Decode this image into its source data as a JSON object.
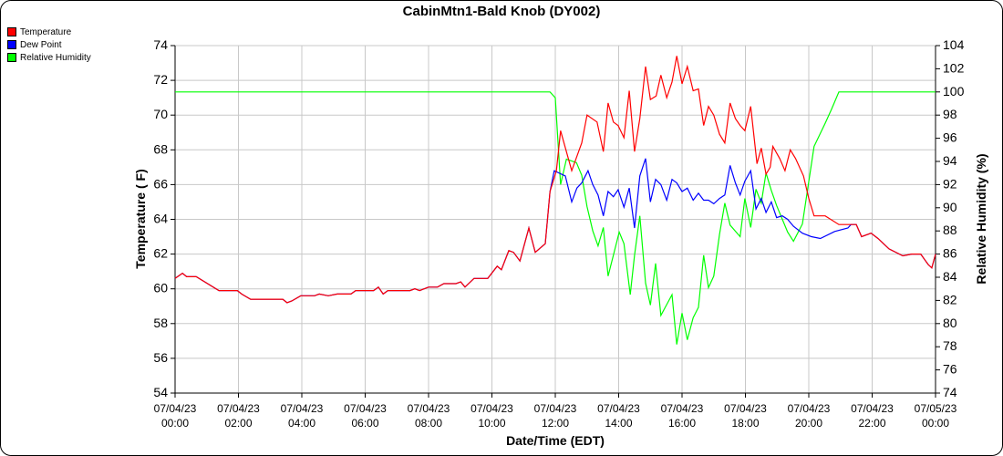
{
  "chart_data": {
    "type": "line",
    "title": "CabinMtn1-Bald Knob (DY002)",
    "xlabel": "Date/Time (EDT)",
    "ylabel": "Temperature ( F)",
    "y2label": "Relative Humidity (%)",
    "ylim": [
      54,
      74
    ],
    "y2lim": [
      74,
      104
    ],
    "yticks": [
      "74",
      "72",
      "70",
      "68",
      "66",
      "64",
      "62",
      "60",
      "58",
      "56",
      "54"
    ],
    "y2ticks": [
      "104",
      "102",
      "100",
      "98",
      "96",
      "94",
      "92",
      "90",
      "88",
      "86",
      "84",
      "82",
      "80",
      "78",
      "76",
      "74"
    ],
    "xticks": [
      [
        "07/04/23",
        "00:00"
      ],
      [
        "07/04/23",
        "02:00"
      ],
      [
        "07/04/23",
        "04:00"
      ],
      [
        "07/04/23",
        "06:00"
      ],
      [
        "07/04/23",
        "08:00"
      ],
      [
        "07/04/23",
        "10:00"
      ],
      [
        "07/04/23",
        "12:00"
      ],
      [
        "07/04/23",
        "14:00"
      ],
      [
        "07/04/23",
        "16:00"
      ],
      [
        "07/04/23",
        "18:00"
      ],
      [
        "07/04/23",
        "20:00"
      ],
      [
        "07/04/23",
        "22:00"
      ],
      [
        "07/05/23",
        "00:00"
      ]
    ],
    "grid": true,
    "legend_position": "top-left",
    "series": [
      {
        "name": "Temperature",
        "color": "#ff0000",
        "axis": "left",
        "points": [
          [
            "07/04 00:00",
            60.6
          ],
          [
            "07/04 00:14",
            60.9
          ],
          [
            "07/04 00:22",
            60.7
          ],
          [
            "07/04 00:40",
            60.7
          ],
          [
            "07/04 01:23",
            59.9
          ],
          [
            "07/04 01:58",
            59.9
          ],
          [
            "07/04 02:06",
            59.7
          ],
          [
            "07/04 02:23",
            59.4
          ],
          [
            "07/04 03:24",
            59.4
          ],
          [
            "07/04 03:32",
            59.2
          ],
          [
            "07/04 03:41",
            59.3
          ],
          [
            "07/04 03:58",
            59.6
          ],
          [
            "07/04 04:24",
            59.6
          ],
          [
            "07/04 04:33",
            59.7
          ],
          [
            "07/04 04:50",
            59.6
          ],
          [
            "07/04 05:07",
            59.7
          ],
          [
            "07/04 05:33",
            59.7
          ],
          [
            "07/04 05:42",
            59.9
          ],
          [
            "07/04 06:16",
            59.9
          ],
          [
            "07/04 06:25",
            60.1
          ],
          [
            "07/04 06:34",
            59.7
          ],
          [
            "07/04 06:43",
            59.9
          ],
          [
            "07/04 07:25",
            59.9
          ],
          [
            "07/04 07:34",
            60.0
          ],
          [
            "07/04 07:43",
            59.9
          ],
          [
            "07/04 08:00",
            60.1
          ],
          [
            "07/04 08:17",
            60.1
          ],
          [
            "07/04 08:29",
            60.3
          ],
          [
            "07/04 08:52",
            60.3
          ],
          [
            "07/04 09:01",
            60.4
          ],
          [
            "07/04 09:09",
            60.1
          ],
          [
            "07/04 09:26",
            60.6
          ],
          [
            "07/04 09:52",
            60.6
          ],
          [
            "07/04 10:10",
            61.3
          ],
          [
            "07/04 10:18",
            61.1
          ],
          [
            "07/04 10:32",
            62.2
          ],
          [
            "07/04 10:41",
            62.1
          ],
          [
            "07/04 10:53",
            61.6
          ],
          [
            "07/04 11:10",
            63.5
          ],
          [
            "07/04 11:22",
            62.1
          ],
          [
            "07/04 11:41",
            62.6
          ],
          [
            "07/04 11:50",
            65.6
          ],
          [
            "07/04 12:02",
            66.8
          ],
          [
            "07/04 12:10",
            69.1
          ],
          [
            "07/04 12:31",
            66.8
          ],
          [
            "07/04 12:50",
            68.4
          ],
          [
            "07/04 13:00",
            70.0
          ],
          [
            "07/04 13:19",
            69.6
          ],
          [
            "07/04 13:31",
            67.9
          ],
          [
            "07/04 13:40",
            70.7
          ],
          [
            "07/04 13:50",
            69.6
          ],
          [
            "07/04 13:59",
            69.4
          ],
          [
            "07/04 14:10",
            68.7
          ],
          [
            "07/04 14:20",
            71.4
          ],
          [
            "07/04 14:30",
            67.9
          ],
          [
            "07/04 14:40",
            69.8
          ],
          [
            "07/04 14:51",
            72.8
          ],
          [
            "07/04 15:00",
            70.9
          ],
          [
            "07/04 15:11",
            71.1
          ],
          [
            "07/04 15:20",
            72.3
          ],
          [
            "07/04 15:31",
            71.0
          ],
          [
            "07/04 15:41",
            71.9
          ],
          [
            "07/04 15:50",
            73.4
          ],
          [
            "07/04 16:00",
            71.8
          ],
          [
            "07/04 16:10",
            72.8
          ],
          [
            "07/04 16:21",
            71.4
          ],
          [
            "07/04 16:31",
            71.5
          ],
          [
            "07/04 16:41",
            69.4
          ],
          [
            "07/04 16:50",
            70.5
          ],
          [
            "07/04 17:00",
            70.0
          ],
          [
            "07/04 17:11",
            68.9
          ],
          [
            "07/04 17:21",
            68.4
          ],
          [
            "07/04 17:31",
            70.7
          ],
          [
            "07/04 17:41",
            69.8
          ],
          [
            "07/04 17:50",
            69.4
          ],
          [
            "07/04 17:59",
            69.1
          ],
          [
            "07/04 18:10",
            70.5
          ],
          [
            "07/04 18:22",
            67.2
          ],
          [
            "07/04 18:30",
            68.1
          ],
          [
            "07/04 18:39",
            66.6
          ],
          [
            "07/04 18:47",
            67.0
          ],
          [
            "07/04 18:52",
            68.2
          ],
          [
            "07/04 19:05",
            67.5
          ],
          [
            "07/04 19:15",
            66.8
          ],
          [
            "07/04 19:25",
            68.0
          ],
          [
            "07/04 19:35",
            67.5
          ],
          [
            "07/04 19:50",
            66.5
          ],
          [
            "07/04 20:00",
            65.2
          ],
          [
            "07/04 20:10",
            64.2
          ],
          [
            "07/04 20:31",
            64.2
          ],
          [
            "07/04 20:57",
            63.7
          ],
          [
            "07/04 21:30",
            63.7
          ],
          [
            "07/04 21:40",
            63.0
          ],
          [
            "07/04 21:58",
            63.2
          ],
          [
            "07/04 22:11",
            62.9
          ],
          [
            "07/04 22:32",
            62.3
          ],
          [
            "07/04 22:58",
            61.9
          ],
          [
            "07/04 23:15",
            62.0
          ],
          [
            "07/04 23:32",
            62.0
          ],
          [
            "07/04 23:46",
            61.4
          ],
          [
            "07/04 23:53",
            61.2
          ],
          [
            "07/05 00:00",
            62.0
          ]
        ]
      },
      {
        "name": "Dew Point",
        "color": "#0000ff",
        "axis": "left",
        "points": [
          [
            "07/04 00:00",
            60.6
          ],
          [
            "07/04 00:14",
            60.9
          ],
          [
            "07/04 00:22",
            60.7
          ],
          [
            "07/04 00:40",
            60.7
          ],
          [
            "07/04 01:23",
            59.9
          ],
          [
            "07/04 01:58",
            59.9
          ],
          [
            "07/04 02:06",
            59.7
          ],
          [
            "07/04 02:23",
            59.4
          ],
          [
            "07/04 03:24",
            59.4
          ],
          [
            "07/04 03:32",
            59.2
          ],
          [
            "07/04 03:41",
            59.3
          ],
          [
            "07/04 03:58",
            59.6
          ],
          [
            "07/04 04:24",
            59.6
          ],
          [
            "07/04 04:33",
            59.7
          ],
          [
            "07/04 04:50",
            59.6
          ],
          [
            "07/04 05:07",
            59.7
          ],
          [
            "07/04 05:33",
            59.7
          ],
          [
            "07/04 05:42",
            59.9
          ],
          [
            "07/04 06:16",
            59.9
          ],
          [
            "07/04 06:25",
            60.1
          ],
          [
            "07/04 06:34",
            59.7
          ],
          [
            "07/04 06:43",
            59.9
          ],
          [
            "07/04 07:25",
            59.9
          ],
          [
            "07/04 07:34",
            60.0
          ],
          [
            "07/04 07:43",
            59.9
          ],
          [
            "07/04 08:00",
            60.1
          ],
          [
            "07/04 08:17",
            60.1
          ],
          [
            "07/04 08:29",
            60.3
          ],
          [
            "07/04 08:52",
            60.3
          ],
          [
            "07/04 09:01",
            60.4
          ],
          [
            "07/04 09:09",
            60.1
          ],
          [
            "07/04 09:26",
            60.6
          ],
          [
            "07/04 09:52",
            60.6
          ],
          [
            "07/04 10:10",
            61.3
          ],
          [
            "07/04 10:18",
            61.1
          ],
          [
            "07/04 10:32",
            62.2
          ],
          [
            "07/04 10:41",
            62.1
          ],
          [
            "07/04 10:53",
            61.6
          ],
          [
            "07/04 11:10",
            63.5
          ],
          [
            "07/04 11:22",
            62.1
          ],
          [
            "07/04 11:41",
            62.6
          ],
          [
            "07/04 11:50",
            65.6
          ],
          [
            "07/04 11:58",
            66.8
          ],
          [
            "07/04 12:19",
            66.5
          ],
          [
            "07/04 12:31",
            65.0
          ],
          [
            "07/04 12:41",
            65.8
          ],
          [
            "07/04 12:50",
            66.1
          ],
          [
            "07/04 13:02",
            66.8
          ],
          [
            "07/04 13:11",
            66.0
          ],
          [
            "07/04 13:21",
            65.4
          ],
          [
            "07/04 13:31",
            64.2
          ],
          [
            "07/04 13:40",
            65.6
          ],
          [
            "07/04 13:50",
            65.3
          ],
          [
            "07/04 13:59",
            65.7
          ],
          [
            "07/04 14:10",
            64.7
          ],
          [
            "07/04 14:20",
            65.8
          ],
          [
            "07/04 14:30",
            63.5
          ],
          [
            "07/04 14:40",
            66.5
          ],
          [
            "07/04 14:51",
            67.5
          ],
          [
            "07/04 15:00",
            65.0
          ],
          [
            "07/04 15:10",
            66.3
          ],
          [
            "07/04 15:20",
            66.0
          ],
          [
            "07/04 15:31",
            65.1
          ],
          [
            "07/04 15:41",
            66.3
          ],
          [
            "07/04 15:50",
            66.1
          ],
          [
            "07/04 16:00",
            65.6
          ],
          [
            "07/04 16:10",
            65.8
          ],
          [
            "07/04 16:21",
            65.1
          ],
          [
            "07/04 16:31",
            65.5
          ],
          [
            "07/04 16:41",
            65.1
          ],
          [
            "07/04 16:50",
            65.1
          ],
          [
            "07/04 17:00",
            64.9
          ],
          [
            "07/04 17:11",
            65.2
          ],
          [
            "07/04 17:21",
            65.4
          ],
          [
            "07/04 17:31",
            67.1
          ],
          [
            "07/04 17:41",
            66.1
          ],
          [
            "07/04 17:50",
            65.4
          ],
          [
            "07/04 17:59",
            66.2
          ],
          [
            "07/04 18:10",
            66.8
          ],
          [
            "07/04 18:20",
            64.6
          ],
          [
            "07/04 18:30",
            65.2
          ],
          [
            "07/04 18:39",
            64.4
          ],
          [
            "07/04 18:49",
            65.0
          ],
          [
            "07/04 18:59",
            64.1
          ],
          [
            "07/04 19:10",
            64.2
          ],
          [
            "07/04 19:20",
            64.0
          ],
          [
            "07/04 19:31",
            63.6
          ],
          [
            "07/04 19:48",
            63.2
          ],
          [
            "07/04 20:05",
            63.0
          ],
          [
            "07/04 20:22",
            62.9
          ],
          [
            "07/04 20:49",
            63.3
          ],
          [
            "07/04 21:14",
            63.5
          ],
          [
            "07/04 21:20",
            63.7
          ],
          [
            "07/04 21:30",
            63.7
          ],
          [
            "07/04 21:40",
            63.0
          ],
          [
            "07/04 21:58",
            63.2
          ],
          [
            "07/04 22:11",
            62.9
          ],
          [
            "07/04 22:32",
            62.3
          ],
          [
            "07/04 22:58",
            61.9
          ],
          [
            "07/04 23:15",
            62.0
          ],
          [
            "07/04 23:32",
            62.0
          ],
          [
            "07/04 23:46",
            61.4
          ],
          [
            "07/04 23:53",
            61.2
          ],
          [
            "07/05 00:00",
            62.0
          ]
        ]
      },
      {
        "name": "Relative Humidity",
        "color": "#00ff00",
        "axis": "right",
        "points": [
          [
            "07/04 00:00",
            100
          ],
          [
            "07/04 11:50",
            100
          ],
          [
            "07/04 12:00",
            99.5
          ],
          [
            "07/04 12:10",
            92.0
          ],
          [
            "07/04 12:21",
            94.2
          ],
          [
            "07/04 12:40",
            93.9
          ],
          [
            "07/04 12:50",
            92.8
          ],
          [
            "07/04 13:00",
            90.1
          ],
          [
            "07/04 13:11",
            88.0
          ],
          [
            "07/04 13:21",
            86.7
          ],
          [
            "07/04 13:31",
            88.3
          ],
          [
            "07/04 13:40",
            84.1
          ],
          [
            "07/04 13:50",
            85.9
          ],
          [
            "07/04 14:01",
            87.9
          ],
          [
            "07/04 14:10",
            86.9
          ],
          [
            "07/04 14:22",
            82.5
          ],
          [
            "07/04 14:30",
            85.9
          ],
          [
            "07/04 14:40",
            89.3
          ],
          [
            "07/04 14:51",
            83.5
          ],
          [
            "07/04 15:00",
            81.6
          ],
          [
            "07/04 15:10",
            85.2
          ],
          [
            "07/04 15:20",
            80.7
          ],
          [
            "07/04 15:41",
            82.5
          ],
          [
            "07/04 15:50",
            78.2
          ],
          [
            "07/04 16:00",
            80.9
          ],
          [
            "07/04 16:10",
            78.6
          ],
          [
            "07/04 16:21",
            80.5
          ],
          [
            "07/04 16:31",
            81.4
          ],
          [
            "07/04 16:41",
            85.9
          ],
          [
            "07/04 16:50",
            83.1
          ],
          [
            "07/04 17:00",
            84.1
          ],
          [
            "07/04 17:11",
            87.7
          ],
          [
            "07/04 17:21",
            90.4
          ],
          [
            "07/04 17:31",
            88.5
          ],
          [
            "07/04 17:50",
            87.5
          ],
          [
            "07/04 17:59",
            90.8
          ],
          [
            "07/04 18:10",
            88.3
          ],
          [
            "07/04 18:20",
            91.6
          ],
          [
            "07/04 18:30",
            90.4
          ],
          [
            "07/04 18:39",
            93.0
          ],
          [
            "07/04 18:49",
            91.5
          ],
          [
            "07/04 18:59",
            90.2
          ],
          [
            "07/04 19:10",
            89.0
          ],
          [
            "07/04 19:20",
            87.9
          ],
          [
            "07/04 19:31",
            87.1
          ],
          [
            "07/04 19:48",
            88.6
          ],
          [
            "07/04 20:10",
            95.3
          ],
          [
            "07/04 20:31",
            97.3
          ],
          [
            "07/04 20:43",
            98.5
          ],
          [
            "07/04 20:57",
            100
          ],
          [
            "07/05 00:00",
            100
          ]
        ]
      }
    ]
  }
}
